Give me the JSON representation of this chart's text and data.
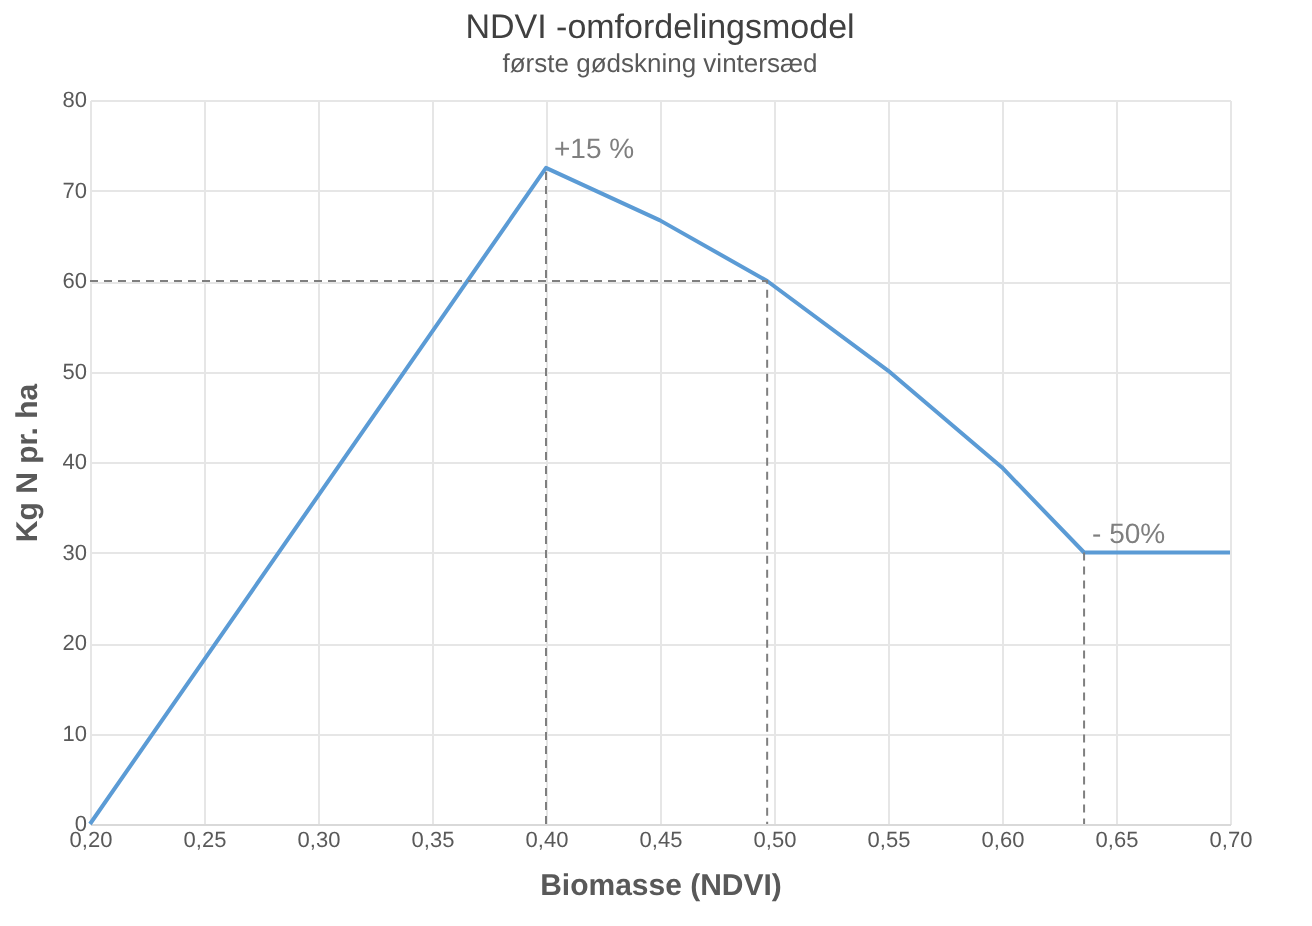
{
  "chart_data": {
    "type": "line",
    "title": "NDVI -omfordelingsmodel",
    "subtitle": "første gødskning vintersæd",
    "xlabel": "Biomasse (NDVI)",
    "ylabel": "Kg N pr. ha",
    "xlim": [
      0.2,
      0.7
    ],
    "xticks": [
      {
        "value": 0.2,
        "label": "0,20"
      },
      {
        "value": 0.25,
        "label": "0,25"
      },
      {
        "value": 0.3,
        "label": "0,30"
      },
      {
        "value": 0.35,
        "label": "0,35"
      },
      {
        "value": 0.4,
        "label": "0,40"
      },
      {
        "value": 0.45,
        "label": "0,45"
      },
      {
        "value": 0.5,
        "label": "0,50"
      },
      {
        "value": 0.55,
        "label": "0,55"
      },
      {
        "value": 0.6,
        "label": "0,60"
      },
      {
        "value": 0.65,
        "label": "0,65"
      },
      {
        "value": 0.7,
        "label": "0,70"
      }
    ],
    "ylim": [
      0,
      80
    ],
    "yticks": [
      0,
      10,
      20,
      30,
      40,
      50,
      60,
      70,
      80
    ],
    "grid": true,
    "marker": "none",
    "series": [
      {
        "color": "#5b9bd5",
        "line_style": "solid",
        "x": [
          0.2,
          0.4,
          0.45,
          0.497,
          0.55,
          0.6,
          0.636,
          0.7
        ],
        "values": [
          0,
          72.5,
          66.7,
          60,
          50.1,
          39.4,
          30,
          30
        ]
      },
      {
        "color": "#7f7f7f",
        "line_style": "dashed",
        "x": [
          0.4,
          0.4
        ],
        "values": [
          0,
          72.5
        ]
      },
      {
        "color": "#7f7f7f",
        "line_style": "dashed",
        "x": [
          0.2,
          0.497,
          0.497
        ],
        "values": [
          60,
          60,
          0
        ]
      },
      {
        "color": "#7f7f7f",
        "line_style": "dashed",
        "x": [
          0.636,
          0.636
        ],
        "values": [
          30,
          0
        ]
      }
    ],
    "annotations": [
      {
        "text": "+15 %",
        "x": 0.4,
        "y": 72.5
      },
      {
        "text": "- 50%",
        "x": 0.636,
        "y": 30
      }
    ]
  }
}
